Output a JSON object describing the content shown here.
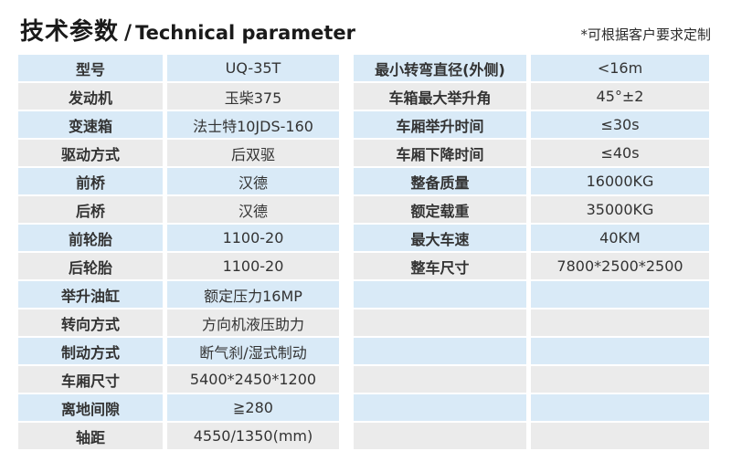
{
  "header": {
    "title_zh": "技术参数",
    "title_divider": "/",
    "title_en": "Technical parameter",
    "note": "*可根据客户要求定制"
  },
  "colors": {
    "row_blue": "#d9eaf7",
    "row_gray": "#ebebeb",
    "text": "#333333"
  },
  "left_table": {
    "rows": [
      {
        "label": "型号",
        "value": "UQ-35T"
      },
      {
        "label": "发动机",
        "value": "玉柴375"
      },
      {
        "label": "变速箱",
        "value": "法士特10JDS-160"
      },
      {
        "label": "驱动方式",
        "value": "后双驱"
      },
      {
        "label": "前桥",
        "value": "汉德"
      },
      {
        "label": "后桥",
        "value": "汉德"
      },
      {
        "label": "前轮胎",
        "value": "1100-20"
      },
      {
        "label": "后轮胎",
        "value": "1100-20"
      },
      {
        "label": "举升油缸",
        "value": "额定压力16MP"
      },
      {
        "label": "转向方式",
        "value": "方向机液压助力"
      },
      {
        "label": "制动方式",
        "value": "断气刹/湿式制动"
      },
      {
        "label": "车厢尺寸",
        "value": "5400*2450*1200"
      },
      {
        "label": "离地间隙",
        "value": "≧280"
      },
      {
        "label": "轴距",
        "value": "4550/1350(mm)"
      }
    ]
  },
  "right_table": {
    "rows": [
      {
        "label": "最小转弯直径(外侧)",
        "value": "<16m"
      },
      {
        "label": "车箱最大举升角",
        "value": "45°±2"
      },
      {
        "label": "车厢举升时间",
        "value": "≤30s"
      },
      {
        "label": "车厢下降时间",
        "value": "≤40s"
      },
      {
        "label": "整备质量",
        "value": "16000KG"
      },
      {
        "label": "额定载重",
        "value": "35000KG"
      },
      {
        "label": "最大车速",
        "value": "40KM"
      },
      {
        "label": "整车尺寸",
        "value": "7800*2500*2500"
      },
      {
        "label": "",
        "value": ""
      },
      {
        "label": "",
        "value": ""
      },
      {
        "label": "",
        "value": ""
      },
      {
        "label": "",
        "value": ""
      },
      {
        "label": "",
        "value": ""
      },
      {
        "label": "",
        "value": ""
      }
    ]
  }
}
